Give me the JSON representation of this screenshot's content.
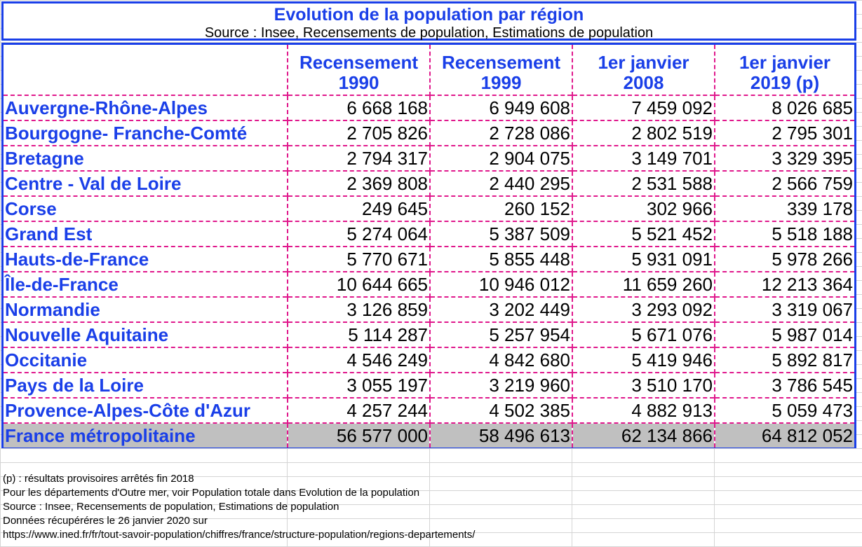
{
  "title": "Evolution de la population par région",
  "subtitle": "Source : Insee, Recensements de population, Estimations de population",
  "headers": [
    {
      "line1": "Recensement",
      "line2": "1990"
    },
    {
      "line1": "Recensement",
      "line2": "1999"
    },
    {
      "line1": "1er janvier",
      "line2": "2008"
    },
    {
      "line1": "1er janvier",
      "line2": "2019 (p)"
    }
  ],
  "rows": [
    {
      "region": "Auvergne-Rhône-Alpes",
      "v1990": "6 668 168",
      "v1999": "6 949 608",
      "v2008": "7 459 092",
      "v2019": "8 026 685"
    },
    {
      "region": "Bourgogne- Franche-Comté",
      "v1990": "2 705 826",
      "v1999": "2 728 086",
      "v2008": "2 802 519",
      "v2019": "2 795 301"
    },
    {
      "region": "Bretagne",
      "v1990": "2 794 317",
      "v1999": "2 904 075",
      "v2008": "3 149 701",
      "v2019": "3 329 395"
    },
    {
      "region": "Centre - Val de Loire",
      "v1990": "2 369 808",
      "v1999": "2 440 295",
      "v2008": "2 531 588",
      "v2019": "2 566 759"
    },
    {
      "region": "Corse",
      "v1990": "249 645",
      "v1999": "260 152",
      "v2008": "302 966",
      "v2019": "339 178"
    },
    {
      "region": "Grand Est",
      "v1990": "5 274 064",
      "v1999": "5 387 509",
      "v2008": "5 521 452",
      "v2019": "5 518 188"
    },
    {
      "region": "Hauts-de-France",
      "v1990": "5 770 671",
      "v1999": "5 855 448",
      "v2008": "5 931 091",
      "v2019": "5 978 266"
    },
    {
      "region": "Île-de-France",
      "v1990": "10 644 665",
      "v1999": "10 946 012",
      "v2008": "11 659 260",
      "v2019": "12 213 364"
    },
    {
      "region": "Normandie",
      "v1990": "3 126 859",
      "v1999": "3 202 449",
      "v2008": "3 293 092",
      "v2019": "3 319 067"
    },
    {
      "region": "Nouvelle Aquitaine",
      "v1990": "5 114 287",
      "v1999": "5 257 954",
      "v2008": "5 671 076",
      "v2019": "5 987 014"
    },
    {
      "region": "Occitanie",
      "v1990": "4 546 249",
      "v1999": "4 842 680",
      "v2008": "5 419 946",
      "v2019": "5 892 817"
    },
    {
      "region": "Pays de la Loire",
      "v1990": "3 055 197",
      "v1999": "3 219 960",
      "v2008": "3 510 170",
      "v2019": "3 786 545"
    },
    {
      "region": "Provence-Alpes-Côte d'Azur",
      "v1990": "4 257 244",
      "v1999": "4 502 385",
      "v2008": "4 882 913",
      "v2019": "5 059 473"
    }
  ],
  "total": {
    "region": "France métropolitaine",
    "v1990": "56 577 000",
    "v1999": "58 496 613",
    "v2008": "62 134 866",
    "v2019": "64 812 052"
  },
  "notes": {
    "provisional": "(p) : résultats provisoires arrêtés fin 2018",
    "overseas": "Pour les départements d'Outre mer, voir Population totale dans Evolution de la population",
    "source": "Source : Insee, Recensements de population, Estimations de population",
    "retrieved": "Données récupéréres le 26 janvier 2020 sur",
    "url": "https://www.ined.fr/fr/tout-savoir-population/chiffres/france/structure-population/regions-departements/"
  },
  "colors": {
    "accent_blue": "#1a3fe8",
    "dashed_pink": "#e0188c",
    "total_gray": "#c0c0c0"
  }
}
